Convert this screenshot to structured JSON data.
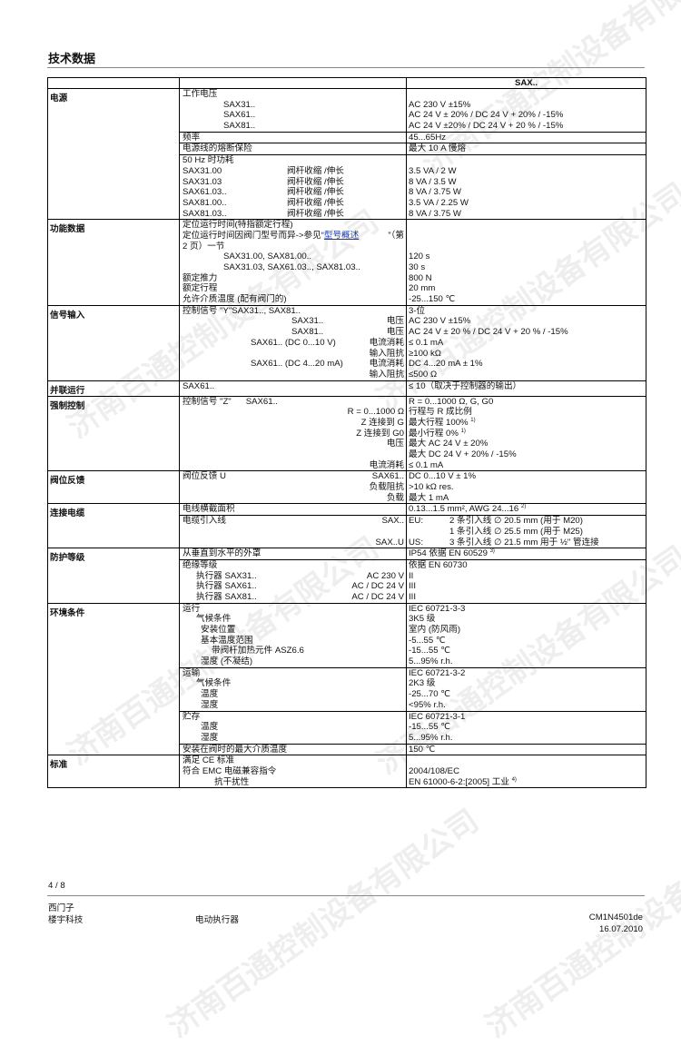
{
  "page_title": "技术数据",
  "watermark": "济南百通控制设备有限公司",
  "table_header": "SAX..",
  "sections": [
    {
      "title": "电源",
      "blocks": [
        {
          "lines": [
            {
              "a": "工作电压"
            },
            {
              "a": "SAX31..",
              "level": 1,
              "v": "AC 230 V ±15%"
            },
            {
              "a": "SAX61..",
              "level": 1,
              "v": "AC 24 V ± 20% / DC 24 V + 20% / -15%"
            },
            {
              "a": "SAX81..",
              "level": 1,
              "v": "AC 24 V ±20% / DC 24 V + 20 % / -15%"
            }
          ]
        },
        {
          "lines": [
            {
              "a": "频率",
              "v": "45...65Hz"
            }
          ]
        },
        {
          "lines": [
            {
              "a": "电源线的熔断保险",
              "v": "最大 10 A 慢熔"
            }
          ]
        },
        {
          "lines": [
            {
              "a": "50 Hz 时功耗"
            },
            {
              "a": "SAX31.00",
              "m": "阀杆收缩 /伸长",
              "v": "3.5 VA / 2 W"
            },
            {
              "a": "SAX31.03",
              "m": "阀杆收缩 /伸长",
              "v": "8 VA / 3.5 W"
            },
            {
              "a": "SAX61.03..",
              "m": "阀杆收缩 /伸长",
              "v": "8 VA / 3.75 W"
            },
            {
              "a": "SAX81.00..",
              "m": "阀杆收缩 /伸长",
              "v": "3.5 VA / 2.25 W"
            },
            {
              "a": "SAX81.03..",
              "m": "阀杆收缩 /伸长",
              "v": "8 VA / 3.75 W"
            }
          ]
        }
      ]
    },
    {
      "title": "功能数据",
      "blocks": [
        {
          "lines": [
            {
              "a": "定位运行时间(特指额定行程)"
            },
            {
              "a": "定位运行时间因阀门型号而异->参见“",
              "link": "型号概述",
              "a2": "”（第"
            },
            {
              "a": "2 页）一节"
            },
            {
              "a": "SAX31.00, SAX81.00..",
              "level": 1,
              "v": "120 s"
            },
            {
              "a": "SAX31.03, SAX61.03.., SAX81.03..",
              "level": 1,
              "v": "30 s"
            },
            {
              "a": "额定推力",
              "v": "800 N"
            },
            {
              "a": "额定行程",
              "v": "20 mm"
            },
            {
              "a": "允许介质温度 (配有阀门的)",
              "v": "-25...150 ℃"
            }
          ]
        }
      ]
    },
    {
      "title": "信号输入",
      "blocks": [
        {
          "lines": [
            {
              "a": "控制信号 \"Y\"SAX31.., SAX81..",
              "v": "3-位"
            },
            {
              "a": "SAX31..",
              "level": 2,
              "r": "电压",
              "v": "AC 230 V ±15%"
            },
            {
              "a": "SAX81..",
              "level": 2,
              "r": "电压",
              "v": "AC 24 V ± 20 % / DC 24 V + 20 % / -15%"
            },
            {
              "a": "SAX61.. (DC 0...10 V)",
              "level": 3,
              "r": "电流消耗",
              "v": "≤ 0.1 mA"
            },
            {
              "r": "输入阻抗",
              "v": "≥100 kΩ"
            },
            {
              "a": "SAX61.. (DC 4...20 mA)",
              "level": 3,
              "r": "电流消耗",
              "v": "DC 4...20 mA ± 1%"
            },
            {
              "r": "输入阻抗",
              "v": "≤500 Ω"
            }
          ]
        }
      ]
    },
    {
      "title": "并联运行",
      "blocks": [
        {
          "lines": [
            {
              "a": "SAX61..",
              "v": "≤ 10（取决于控制器的输出）"
            }
          ]
        }
      ]
    },
    {
      "title": "强制控制",
      "blocks": [
        {
          "lines": [
            {
              "a": "控制信号 \"Z\"      SAX61..",
              "v": "R = 0...1000 Ω, G, G0"
            },
            {
              "r": "R = 0...1000 Ω",
              "v": "行程与 R 成比例"
            },
            {
              "r": "Z 连接到 G",
              "v": "最大行程 100% ",
              "sup": "1)"
            },
            {
              "r": "Z 连接到 G0",
              "v": "最小行程 0% ",
              "sup": "1)"
            },
            {
              "r": "电压",
              "v": "最大 AC 24 V ± 20%"
            },
            {
              "v": "最大 DC 24 V + 20% / -15%"
            },
            {
              "r": "电流消耗",
              "v": "≤ 0.1 mA"
            }
          ]
        }
      ]
    },
    {
      "title": "阀位反馈",
      "blocks": [
        {
          "lines": [
            {
              "a": "阀位反馈 U",
              "r": "SAX61..",
              "v": "DC 0...10 V ± 1%"
            },
            {
              "r": "负载阻抗",
              "v": ">10 kΩ res."
            },
            {
              "r": "负载",
              "v": "最大 1 mA"
            }
          ]
        }
      ]
    },
    {
      "title": "连接电缆",
      "blocks": [
        {
          "lines": [
            {
              "a": "电线横截面积",
              "v": "0.13...1.5 mm², AWG 24...16 ",
              "sup": "2)"
            }
          ]
        },
        {
          "lines": [
            {
              "a": "电缆引入线",
              "r": "SAX..",
              "vl": "EU:",
              "v": "2 条引入线 ∅ 20.5 mm (用于 M20)"
            },
            {
              "vl": "",
              "v": "1 条引入线 ∅ 25.5 mm (用于 M25)"
            },
            {
              "r": "SAX..U",
              "vl": "US:",
              "v": "3 条引入线 ∅ 21.5 mm 用于 ½\" 管连接"
            }
          ]
        }
      ]
    },
    {
      "title": "防护等级",
      "blocks": [
        {
          "lines": [
            {
              "a": "从垂直到水平的外罩",
              "v": "IP54 依据 EN 60529 ",
              "sup": "3)"
            }
          ]
        },
        {
          "lines": [
            {
              "a": "绝缘等级",
              "v": "依据 EN 60730"
            },
            {
              "a": "执行器 SAX31..",
              "level": 4,
              "r": "AC 230 V",
              "v": "II"
            },
            {
              "a": "执行器 SAX61..",
              "level": 4,
              "r": "AC / DC 24 V",
              "v": "III"
            },
            {
              "a": "执行器 SAX81..",
              "level": 4,
              "r": "AC / DC 24 V",
              "v": "III"
            }
          ]
        }
      ]
    },
    {
      "title": "环境条件",
      "blocks": [
        {
          "lines": [
            {
              "a": "运行",
              "v": "IEC 60721-3-3"
            },
            {
              "a": "气候条件",
              "level": 4,
              "v": "3K5 级"
            },
            {
              "a": "安装位置",
              "level": 5,
              "v": "室内 (防风雨)"
            },
            {
              "a": "基本温度范围",
              "level": 5,
              "v": "-5...55 ℃"
            },
            {
              "a": "带阀杆加热元件 ASZ6.6",
              "level": 6,
              "v": "-15...55 ℃"
            },
            {
              "a": "湿度 (不凝结)",
              "level": 5,
              "v": "5...95% r.h."
            }
          ]
        },
        {
          "lines": [
            {
              "a": "运输",
              "v": "IEC 60721-3-2"
            },
            {
              "a": "气候条件",
              "level": 4,
              "v": "2K3 级"
            },
            {
              "a": "温度",
              "level": 5,
              "v": "-25...70 ℃"
            },
            {
              "a": "湿度",
              "level": 5,
              "v": "<95% r.h."
            }
          ]
        },
        {
          "lines": [
            {
              "a": "贮存",
              "v": "IEC 60721-3-1"
            },
            {
              "a": "温度",
              "level": 5,
              "v": "-15...55 ℃"
            },
            {
              "a": "湿度",
              "level": 5,
              "v": "5...95% r.h."
            }
          ]
        },
        {
          "lines": [
            {
              "a": "安装在阀时的最大介质温度",
              "v": "150 ℃"
            }
          ]
        }
      ]
    },
    {
      "title": "标准",
      "blocks": [
        {
          "lines": [
            {
              "a": "满足 CE 标准"
            },
            {
              "a": "符合 EMC 电磁兼容指令",
              "v": "2004/108/EC"
            },
            {
              "a": "抗干扰性",
              "level": 7,
              "v": "EN 61000-6-2:[2005] 工业 ",
              "sup": "4)"
            }
          ]
        }
      ]
    }
  ],
  "footer": {
    "page": "4 / 8",
    "company": "西门子",
    "division": "楼宇科技",
    "product": "电动执行器",
    "doc_id": "CM1N4501de",
    "date": "16.07.2010"
  }
}
